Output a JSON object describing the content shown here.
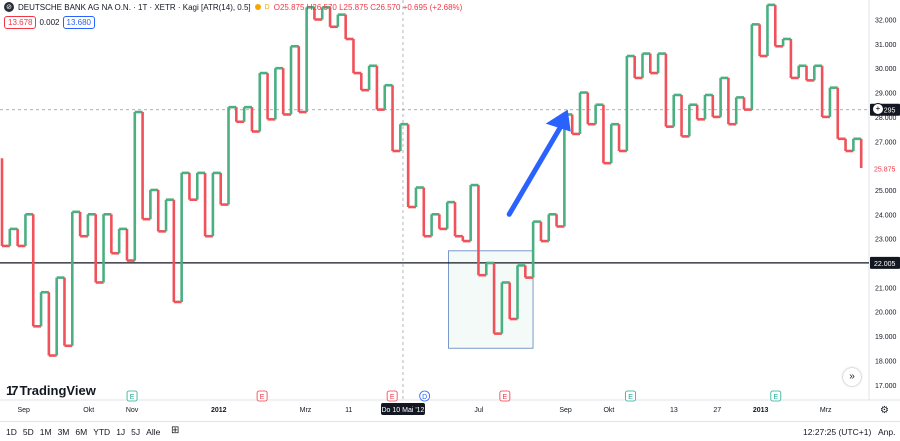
{
  "legend": {
    "symbol_icon": "deutsche-bank-logo-icon",
    "title": "DEUTSCHE BANK AG NA O.N. · 1T · XETR · Kagi [ATR(14), 0.5]",
    "d_badge": "D",
    "ohlc": "O25.875 H26.570 L25.875 C26.570 +0.695 (+2.68%)",
    "box_left": "13.678",
    "middle": "0.002",
    "box_right": "13.680"
  },
  "colors": {
    "up": "#4caf82",
    "down": "#f0525b",
    "accent": "#2962ff",
    "hline": "#131722"
  },
  "branding": {
    "logo_mark": "17",
    "logo_text": "TradingView"
  },
  "scroll_button": "»",
  "bottom": {
    "ranges": [
      "1D",
      "5D",
      "1M",
      "3M",
      "6M",
      "YTD",
      "1J",
      "5J",
      "Alle"
    ],
    "calendar_icon": "calendar-goto-icon",
    "clock": "12:27:25 (UTC+1)",
    "adjust": "Anp."
  },
  "chart_data": {
    "type": "kagi",
    "price_axis": {
      "ticks": [
        32,
        31,
        30,
        29,
        28,
        27,
        26,
        25,
        24,
        23,
        22,
        21,
        20,
        19,
        18,
        17
      ],
      "tick_labels": [
        "32.000",
        "31.000",
        "30.000",
        "29.000",
        "28.000",
        "27.000",
        "26.000",
        "25.000",
        "24.000",
        "23.000",
        "22.000",
        "21.000",
        "20.000",
        "19.000",
        "18.000",
        "17.000"
      ],
      "range": [
        16.4,
        32.7
      ]
    },
    "time_axis": {
      "ticks": [
        {
          "label": "Sep",
          "i": 1
        },
        {
          "label": "Okt",
          "i": 4
        },
        {
          "label": "Nov",
          "i": 6
        },
        {
          "label": "2012",
          "i": 10
        },
        {
          "label": "Mrz",
          "i": 14
        },
        {
          "label": "11",
          "i": 16
        },
        {
          "label": "Jul",
          "i": 22
        },
        {
          "label": "Sep",
          "i": 26
        },
        {
          "label": "Okt",
          "i": 28
        },
        {
          "label": "13",
          "i": 31
        },
        {
          "label": "27",
          "i": 33
        },
        {
          "label": "2013",
          "i": 35
        },
        {
          "label": "Mrz",
          "i": 38
        }
      ],
      "crosshair_label": "Do 10 Mai '12",
      "crosshair_i": 18.5
    },
    "kagi_series": [
      {
        "y_from": 26.3,
        "y_to": 22.7
      },
      {
        "y_from": 22.7,
        "y_to": 23.4
      },
      {
        "y_from": 23.4,
        "y_to": 22.7
      },
      {
        "y_from": 22.7,
        "y_to": 24.0
      },
      {
        "y_from": 24.0,
        "y_to": 19.4
      },
      {
        "y_from": 19.4,
        "y_to": 20.8
      },
      {
        "y_from": 20.8,
        "y_to": 18.2
      },
      {
        "y_from": 18.2,
        "y_to": 21.4
      },
      {
        "y_from": 21.4,
        "y_to": 18.6
      },
      {
        "y_from": 18.6,
        "y_to": 24.1
      },
      {
        "y_from": 24.1,
        "y_to": 23.1
      },
      {
        "y_from": 23.1,
        "y_to": 24.0
      },
      {
        "y_from": 24.0,
        "y_to": 21.2
      },
      {
        "y_from": 21.2,
        "y_to": 24.0
      },
      {
        "y_from": 24.0,
        "y_to": 22.4
      },
      {
        "y_from": 22.4,
        "y_to": 23.4
      },
      {
        "y_from": 23.4,
        "y_to": 22.1
      },
      {
        "y_from": 22.1,
        "y_to": 28.2
      },
      {
        "y_from": 28.2,
        "y_to": 23.8
      },
      {
        "y_from": 23.8,
        "y_to": 25.0
      },
      {
        "y_from": 25.0,
        "y_to": 23.3
      },
      {
        "y_from": 23.3,
        "y_to": 24.6
      },
      {
        "y_from": 24.6,
        "y_to": 20.4
      },
      {
        "y_from": 20.4,
        "y_to": 25.7
      },
      {
        "y_from": 25.7,
        "y_to": 24.6
      },
      {
        "y_from": 24.6,
        "y_to": 25.7
      },
      {
        "y_from": 25.7,
        "y_to": 23.1
      },
      {
        "y_from": 23.1,
        "y_to": 25.7
      },
      {
        "y_from": 25.7,
        "y_to": 24.4
      },
      {
        "y_from": 24.4,
        "y_to": 28.4
      },
      {
        "y_from": 28.4,
        "y_to": 27.8
      },
      {
        "y_from": 27.8,
        "y_to": 28.4
      },
      {
        "y_from": 28.4,
        "y_to": 27.4
      },
      {
        "y_from": 27.4,
        "y_to": 29.8
      },
      {
        "y_from": 29.8,
        "y_to": 27.9
      },
      {
        "y_from": 27.9,
        "y_to": 30.0
      },
      {
        "y_from": 30.0,
        "y_to": 28.1
      },
      {
        "y_from": 28.1,
        "y_to": 30.9
      },
      {
        "y_from": 30.9,
        "y_to": 28.2
      },
      {
        "y_from": 28.2,
        "y_to": 32.5
      },
      {
        "y_from": 32.5,
        "y_to": 32.0
      },
      {
        "y_from": 32.0,
        "y_to": 32.5
      },
      {
        "y_from": 32.5,
        "y_to": 31.7
      },
      {
        "y_from": 31.7,
        "y_to": 32.2
      },
      {
        "y_from": 32.2,
        "y_to": 31.2
      },
      {
        "y_from": 31.2,
        "y_to": 29.8
      },
      {
        "y_from": 29.8,
        "y_to": 29.1
      },
      {
        "y_from": 29.1,
        "y_to": 30.1
      },
      {
        "y_from": 30.1,
        "y_to": 28.3
      },
      {
        "y_from": 28.3,
        "y_to": 29.3
      },
      {
        "y_from": 29.3,
        "y_to": 26.6
      },
      {
        "y_from": 26.6,
        "y_to": 27.7
      },
      {
        "y_from": 27.7,
        "y_to": 24.3
      },
      {
        "y_from": 24.3,
        "y_to": 25.1
      },
      {
        "y_from": 25.1,
        "y_to": 23.1
      },
      {
        "y_from": 23.1,
        "y_to": 24.0
      },
      {
        "y_from": 24.0,
        "y_to": 23.4
      },
      {
        "y_from": 23.4,
        "y_to": 24.5
      },
      {
        "y_from": 24.5,
        "y_to": 23.1
      },
      {
        "y_from": 23.1,
        "y_to": 22.9
      },
      {
        "y_from": 22.9,
        "y_to": 25.2
      },
      {
        "y_from": 25.2,
        "y_to": 21.5
      },
      {
        "y_from": 21.5,
        "y_to": 22.0
      },
      {
        "y_from": 22.0,
        "y_to": 19.1
      },
      {
        "y_from": 19.1,
        "y_to": 21.2
      },
      {
        "y_from": 21.2,
        "y_to": 19.7
      },
      {
        "y_from": 19.7,
        "y_to": 21.9
      },
      {
        "y_from": 21.9,
        "y_to": 21.4
      },
      {
        "y_from": 21.4,
        "y_to": 23.7
      },
      {
        "y_from": 23.7,
        "y_to": 22.9
      },
      {
        "y_from": 22.9,
        "y_to": 24.0
      },
      {
        "y_from": 24.0,
        "y_to": 23.5
      },
      {
        "y_from": 23.5,
        "y_to": 28.1
      },
      {
        "y_from": 28.1,
        "y_to": 27.3
      },
      {
        "y_from": 27.3,
        "y_to": 29.0
      },
      {
        "y_from": 29.0,
        "y_to": 27.7
      },
      {
        "y_from": 27.7,
        "y_to": 28.5
      },
      {
        "y_from": 28.5,
        "y_to": 26.1
      },
      {
        "y_from": 26.1,
        "y_to": 27.7
      },
      {
        "y_from": 27.7,
        "y_to": 26.6
      },
      {
        "y_from": 26.6,
        "y_to": 30.5
      },
      {
        "y_from": 30.5,
        "y_to": 29.6
      },
      {
        "y_from": 29.6,
        "y_to": 30.6
      },
      {
        "y_from": 30.6,
        "y_to": 29.8
      },
      {
        "y_from": 29.8,
        "y_to": 30.6
      },
      {
        "y_from": 30.6,
        "y_to": 27.6
      },
      {
        "y_from": 27.6,
        "y_to": 28.9
      },
      {
        "y_from": 28.9,
        "y_to": 27.2
      },
      {
        "y_from": 27.2,
        "y_to": 28.5
      },
      {
        "y_from": 28.5,
        "y_to": 27.9
      },
      {
        "y_from": 27.9,
        "y_to": 28.9
      },
      {
        "y_from": 28.9,
        "y_to": 28.0
      },
      {
        "y_from": 28.0,
        "y_to": 29.6
      },
      {
        "y_from": 29.6,
        "y_to": 27.7
      },
      {
        "y_from": 27.7,
        "y_to": 28.8
      },
      {
        "y_from": 28.8,
        "y_to": 28.3
      },
      {
        "y_from": 28.3,
        "y_to": 31.8
      },
      {
        "y_from": 31.8,
        "y_to": 30.5
      },
      {
        "y_from": 30.5,
        "y_to": 32.6
      },
      {
        "y_from": 32.6,
        "y_to": 30.9
      },
      {
        "y_from": 30.9,
        "y_to": 31.2
      },
      {
        "y_from": 31.2,
        "y_to": 29.6
      },
      {
        "y_from": 29.6,
        "y_to": 30.1
      },
      {
        "y_from": 30.1,
        "y_to": 29.5
      },
      {
        "y_from": 29.5,
        "y_to": 30.1
      },
      {
        "y_from": 30.1,
        "y_to": 28.0
      },
      {
        "y_from": 28.0,
        "y_to": 29.2
      },
      {
        "y_from": 29.2,
        "y_to": 27.1
      },
      {
        "y_from": 27.1,
        "y_to": 26.6
      },
      {
        "y_from": 26.6,
        "y_to": 27.1
      },
      {
        "y_from": 27.1,
        "y_to": 25.9
      }
    ],
    "horizontal_line": {
      "value": 22.005,
      "label": "22.005"
    },
    "dashed_line": {
      "value": 28.295,
      "label": "28.295"
    },
    "last_price_label": "25.875",
    "annotation_box": {
      "y_top": 22.5,
      "y_bottom": 18.5,
      "i_from": 20.6,
      "i_to": 24.5
    },
    "arrow": {
      "from_i": 23.4,
      "to_i": 26.1,
      "from_y": 24.0,
      "to_y": 28.3
    },
    "events": [
      {
        "type": "E",
        "i": 6,
        "color": "#22ab94"
      },
      {
        "type": "E",
        "i": 12,
        "color": "#f23645"
      },
      {
        "type": "E",
        "i": 18,
        "color": "#f23645"
      },
      {
        "type": "D",
        "i": 19.5,
        "color": "#2962ff"
      },
      {
        "type": "E",
        "i": 23.2,
        "color": "#f23645"
      },
      {
        "type": "E",
        "i": 29,
        "color": "#22ab94"
      },
      {
        "type": "E",
        "i": 35.7,
        "color": "#22ab94"
      }
    ]
  }
}
